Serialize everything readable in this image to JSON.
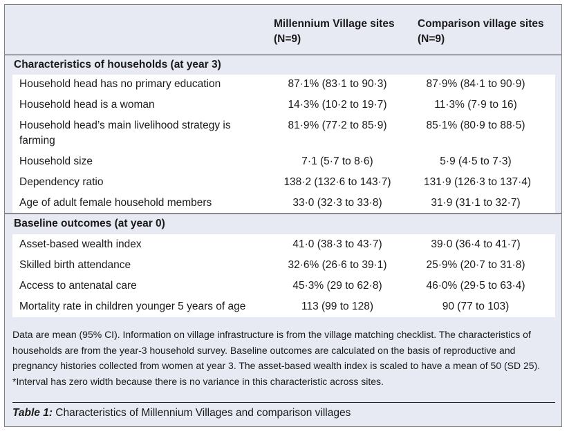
{
  "header": {
    "col1": [
      "Millennium Village sites",
      "(N=9)"
    ],
    "col2": [
      "Comparison village sites",
      "(N=9)"
    ]
  },
  "sections": [
    {
      "title": "Characteristics of households (at year 3)",
      "rows": [
        {
          "label": "Household head has no primary education",
          "mv": "87·1% (83·1 to 90·3)",
          "cv": "87·9% (84·1 to 90·9)"
        },
        {
          "label": "Household head is a woman",
          "mv": "14·3% (10·2 to 19·7)",
          "cv": "11·3% (7·9 to 16)"
        },
        {
          "label": "Household head’s main livelihood strategy is farming",
          "mv": "81·9% (77·2 to 85·9)",
          "cv": "85·1% (80·9 to 88·5)"
        },
        {
          "label": "Household size",
          "mv": "7·1 (5·7 to 8·6)",
          "cv": "5·9 (4·5 to 7·3)"
        },
        {
          "label": "Dependency ratio",
          "mv": "138·2 (132·6 to 143·7)",
          "cv": "131·9 (126·3 to 137·4)"
        },
        {
          "label": "Age of adult female household members",
          "mv": "33·0 (32·3 to 33·8)",
          "cv": "31·9 (31·1 to 32·7)"
        }
      ]
    },
    {
      "title": "Baseline outcomes (at year 0)",
      "rows": [
        {
          "label": "Asset-based wealth index",
          "mv": "41·0 (38·3 to 43·7)",
          "cv": "39·0 (36·4 to 41·7)"
        },
        {
          "label": "Skilled birth attendance",
          "mv": "32·6% (26·6 to 39·1)",
          "cv": "25·9% (20·7 to 31·8)"
        },
        {
          "label": "Access to antenatal care",
          "mv": "45·3% (29 to 62·8)",
          "cv": "46·0% (29·5 to 63·4)"
        },
        {
          "label": "Mortality rate in children younger 5 years of age",
          "mv": "113 (99 to 128)",
          "cv": "90 (77 to 103)"
        }
      ]
    }
  ],
  "footnote": "Data are mean (95% CI). Information on village infrastructure is from the village matching checklist. The characteristics of households are from the year-3 household survey. Baseline outcomes are calculated on the basis of reproductive and pregnancy histories collected from women at year 3. The asset-based wealth index is scaled to have a mean of 50 (SD 25). *Interval has zero width because there is no variance in this characteristic across sites.",
  "caption": {
    "label": "Table 1:",
    "text": " Characteristics of Millennium Villages and comparison villages"
  }
}
